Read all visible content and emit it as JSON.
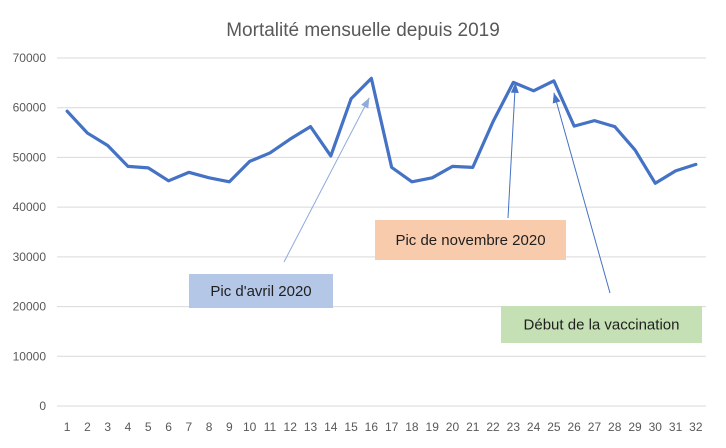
{
  "chart_data": {
    "type": "line",
    "title": "Mortalité mensuelle depuis 2019",
    "xlabel": "",
    "ylabel": "",
    "x": [
      1,
      2,
      3,
      4,
      5,
      6,
      7,
      8,
      9,
      10,
      11,
      12,
      13,
      14,
      15,
      16,
      17,
      18,
      19,
      20,
      21,
      22,
      23,
      24,
      25,
      26,
      27,
      28,
      29,
      30,
      31,
      32
    ],
    "x_tick_labels": [
      "1",
      "2",
      "3",
      "4",
      "5",
      "6",
      "7",
      "8",
      "9",
      "10",
      "11",
      "12",
      "13",
      "14",
      "15",
      "16",
      "17",
      "18",
      "19",
      "20",
      "21",
      "22",
      "23",
      "24",
      "25",
      "26",
      "27",
      "28",
      "29",
      "30",
      "31",
      "32"
    ],
    "ylim": [
      0,
      70000
    ],
    "y_ticks": [
      0,
      10000,
      20000,
      30000,
      40000,
      50000,
      60000,
      70000
    ],
    "y_tick_labels": [
      "0",
      "10000",
      "20000",
      "30000",
      "40000",
      "50000",
      "60000",
      "70000"
    ],
    "grid": true,
    "legend": "none",
    "series": [
      {
        "color": "#4472c4",
        "values": [
          59300,
          54900,
          52400,
          48200,
          47900,
          45300,
          47000,
          45900,
          45100,
          49200,
          50900,
          53700,
          56200,
          50300,
          61800,
          65900,
          48000,
          45100,
          45900,
          48200,
          48000,
          57200,
          65100,
          63400,
          65400,
          56300,
          57400,
          56200,
          51500,
          44800,
          47300,
          48600
        ]
      }
    ],
    "annotations": [
      {
        "text": "Pic d'avril 2020",
        "box_color": "#b4c7e7",
        "target_x": 15.9,
        "target_y": 62000,
        "line_color": "#8faadc"
      },
      {
        "text": "Pic de novembre 2020",
        "box_color": "#f8cbad",
        "target_x": 23.1,
        "target_y": 65000,
        "line_color": "#4472c4"
      },
      {
        "text": "Début de la vaccination",
        "box_color": "#c5e0b4",
        "target_x": 25.0,
        "target_y": 63000,
        "line_color": "#4472c4"
      }
    ]
  }
}
